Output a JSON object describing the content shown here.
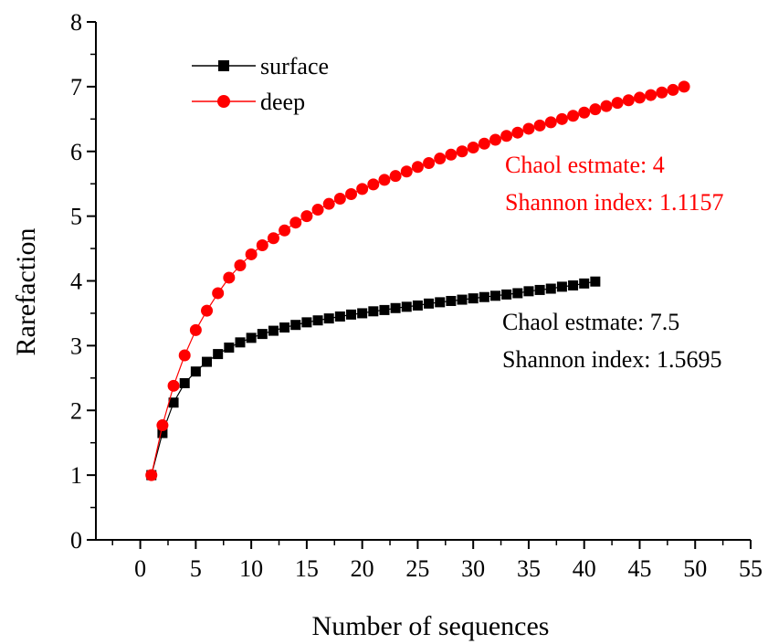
{
  "chart_data": {
    "type": "line",
    "xlabel": "Number of sequences",
    "ylabel": "Rarefaction",
    "xlim": [
      -4,
      55
    ],
    "ylim": [
      0,
      8
    ],
    "xticks": [
      0,
      5,
      10,
      15,
      20,
      25,
      30,
      35,
      40,
      45,
      50,
      55
    ],
    "yticks": [
      0,
      1,
      2,
      3,
      4,
      5,
      6,
      7,
      8
    ],
    "grid": false,
    "legend_position": "top-left",
    "series": [
      {
        "name": "surface",
        "color": "#000000",
        "marker": "square",
        "x": [
          1,
          2,
          3,
          4,
          5,
          6,
          7,
          8,
          9,
          10,
          11,
          12,
          13,
          14,
          15,
          16,
          17,
          18,
          19,
          20,
          21,
          22,
          23,
          24,
          25,
          26,
          27,
          28,
          29,
          30,
          31,
          32,
          33,
          34,
          35,
          36,
          37,
          38,
          39,
          40,
          41
        ],
        "y": [
          1.0,
          1.65,
          2.12,
          2.42,
          2.6,
          2.75,
          2.87,
          2.97,
          3.05,
          3.12,
          3.18,
          3.23,
          3.28,
          3.32,
          3.36,
          3.39,
          3.42,
          3.45,
          3.48,
          3.5,
          3.53,
          3.55,
          3.58,
          3.6,
          3.62,
          3.65,
          3.67,
          3.69,
          3.71,
          3.73,
          3.75,
          3.77,
          3.79,
          3.81,
          3.84,
          3.86,
          3.88,
          3.91,
          3.93,
          3.96,
          3.99
        ]
      },
      {
        "name": "deep",
        "color": "#ff0000",
        "marker": "circle",
        "x": [
          1,
          2,
          3,
          4,
          5,
          6,
          7,
          8,
          9,
          10,
          11,
          12,
          13,
          14,
          15,
          16,
          17,
          18,
          19,
          20,
          21,
          22,
          23,
          24,
          25,
          26,
          27,
          28,
          29,
          30,
          31,
          32,
          33,
          34,
          35,
          36,
          37,
          38,
          39,
          40,
          41,
          42,
          43,
          44,
          45,
          46,
          47,
          48,
          49
        ],
        "y": [
          1.0,
          1.77,
          2.38,
          2.85,
          3.24,
          3.54,
          3.81,
          4.05,
          4.24,
          4.41,
          4.55,
          4.66,
          4.78,
          4.9,
          5.0,
          5.1,
          5.19,
          5.27,
          5.34,
          5.42,
          5.49,
          5.56,
          5.62,
          5.69,
          5.76,
          5.82,
          5.89,
          5.95,
          6.0,
          6.06,
          6.12,
          6.18,
          6.24,
          6.29,
          6.35,
          6.4,
          6.45,
          6.5,
          6.55,
          6.6,
          6.65,
          6.7,
          6.75,
          6.79,
          6.83,
          6.87,
          6.91,
          6.95,
          7.0
        ]
      }
    ],
    "annotations": [
      {
        "id": "deep-chao",
        "text": "Chaol estmate:  4",
        "color": "#ff0000"
      },
      {
        "id": "deep-shannon",
        "text": "Shannon index: 1.1157",
        "color": "#ff0000"
      },
      {
        "id": "surface-chao",
        "text": "Chaol estmate:  7.5",
        "color": "#000000"
      },
      {
        "id": "surface-shannon",
        "text": "Shannon index: 1.5695",
        "color": "#000000"
      }
    ]
  }
}
